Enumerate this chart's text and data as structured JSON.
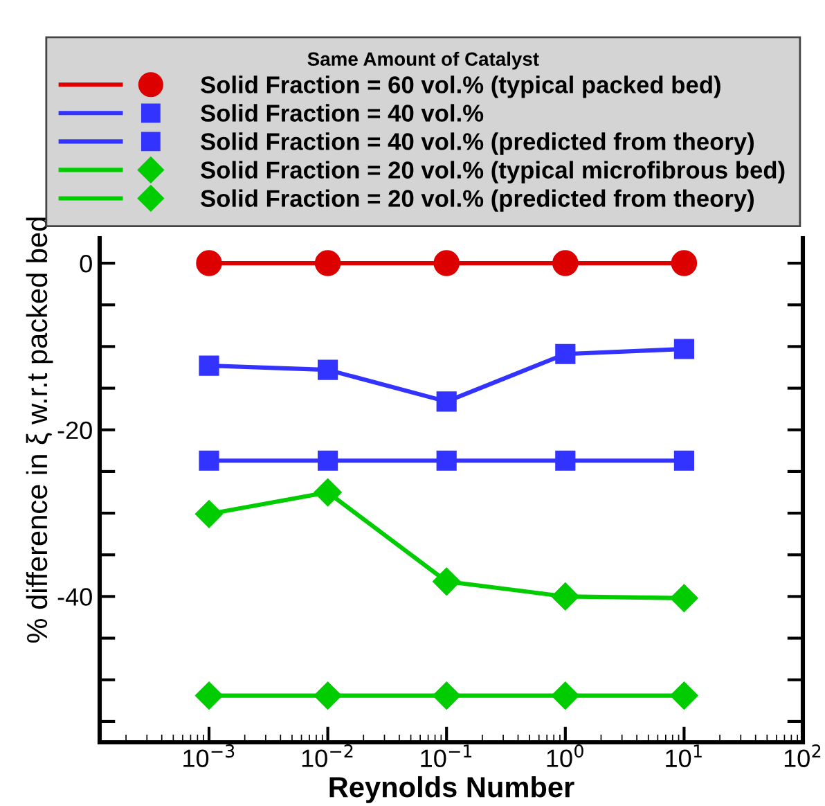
{
  "chart_data": {
    "type": "line",
    "legend_title": "Same Amount of Catalyst",
    "xlabel": "Reynolds Number",
    "ylabel": "% difference in ξ w.r.t packed bed",
    "x": [
      0.001,
      0.01,
      0.1,
      1,
      10
    ],
    "series": [
      {
        "name": "Solid Fraction = 60 vol.% (typical packed bed)",
        "color": "#dd0000",
        "marker": "circle",
        "values": [
          0,
          0,
          0,
          0,
          0
        ]
      },
      {
        "name": "Solid Fraction = 40 vol.%",
        "color": "#3333ff",
        "marker": "square",
        "values": [
          -12.3,
          -12.8,
          -16.6,
          -10.9,
          -10.3
        ]
      },
      {
        "name": "Solid Fraction = 40 vol.% (predicted from theory)",
        "color": "#3333ff",
        "marker": "square",
        "values": [
          -23.7,
          -23.7,
          -23.7,
          -23.7,
          -23.7
        ]
      },
      {
        "name": "Solid Fraction = 20 vol.% (typical microfibrous bed)",
        "color": "#00cc00",
        "marker": "diamond",
        "values": [
          -30.1,
          -27.5,
          -38.2,
          -40,
          -40.2
        ]
      },
      {
        "name": "Solid Fraction = 20 vol.% (predicted from theory)",
        "color": "#00cc00",
        "marker": "diamond",
        "values": [
          -51.9,
          -51.9,
          -51.9,
          -51.9,
          -51.9
        ]
      }
    ],
    "log": "x",
    "xlim": [
      0.00012,
      100
    ],
    "xticks": [
      {
        "value": 0.001,
        "label": "10$^{−3}$"
      },
      {
        "value": 0.01,
        "label": "10$^{−2}$"
      },
      {
        "value": 0.1,
        "label": "10$^{−1}$"
      },
      {
        "value": 1,
        "label": "10$^{0}$"
      },
      {
        "value": 10,
        "label": "10$^{1}$"
      },
      {
        "value": 100,
        "label": "10$^{2}$"
      }
    ],
    "ylim": [
      -57.5,
      3
    ],
    "yticks": [
      {
        "value": -55,
        "label": null
      },
      {
        "value": -50,
        "label": null
      },
      {
        "value": -45,
        "label": null
      },
      -40,
      {
        "value": -35,
        "label": null
      },
      {
        "value": -30,
        "label": null
      },
      {
        "value": -25,
        "label": null
      },
      -20,
      {
        "value": -15,
        "label": null
      },
      {
        "value": -10,
        "label": null
      },
      {
        "value": -5,
        "label": null
      },
      0
    ],
    "grid": false,
    "legend": "top"
  }
}
